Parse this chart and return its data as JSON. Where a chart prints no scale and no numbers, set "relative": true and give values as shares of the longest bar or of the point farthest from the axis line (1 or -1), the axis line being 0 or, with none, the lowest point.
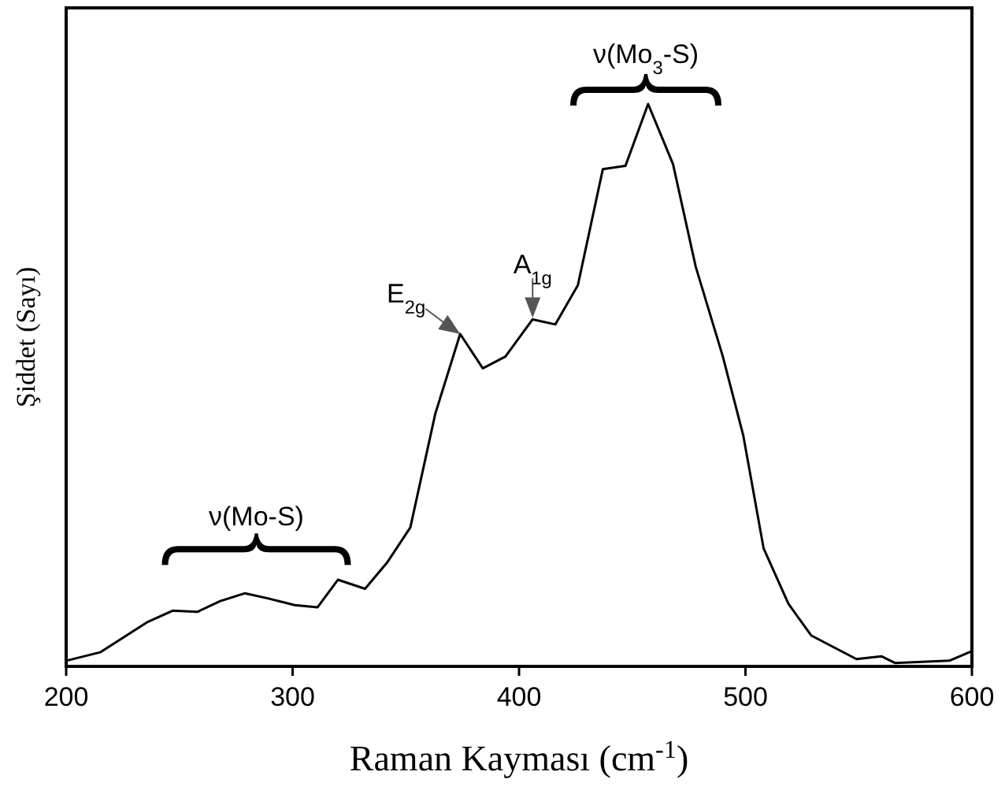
{
  "chart_data": {
    "type": "line",
    "relative": true,
    "xlabel": "Raman Kayması (cm$^{-1}$)",
    "ylabel": "Şiddet (Sayı)",
    "xlim": [
      200,
      600
    ],
    "xticks": [
      200,
      300,
      400,
      500,
      600
    ],
    "tick_labels": "x",
    "grid": false,
    "marker": "none",
    "line_style": "solid",
    "series": [
      {
        "color": "#000000",
        "x": [
          200,
          215,
          236,
          247,
          258,
          268,
          279,
          289,
          301,
          311,
          320,
          332,
          342,
          352,
          363,
          374,
          384,
          394,
          406,
          416,
          426,
          437,
          447,
          457,
          468,
          478,
          490,
          499,
          508,
          519,
          529,
          549,
          560,
          566,
          590,
          600
        ],
        "values": [
          0.01,
          0.025,
          0.079,
          0.099,
          0.097,
          0.116,
          0.13,
          0.121,
          0.109,
          0.105,
          0.154,
          0.138,
          0.186,
          0.247,
          0.449,
          0.591,
          0.53,
          0.551,
          0.617,
          0.608,
          0.678,
          0.884,
          0.89,
          1,
          0.893,
          0.711,
          0.551,
          0.411,
          0.21,
          0.111,
          0.055,
          0.013,
          0.018,
          0.006,
          0.01,
          0.027
        ]
      }
    ],
    "annotations": [
      "ν(Mo-S)",
      {
        "text": "E$_{2g}$",
        "x": 374,
        "y": 0.591
      },
      {
        "text": "A$_{1g}$",
        "x": 406,
        "y": 0.617
      },
      "ν(Mo$_{3}$-S)"
    ]
  }
}
